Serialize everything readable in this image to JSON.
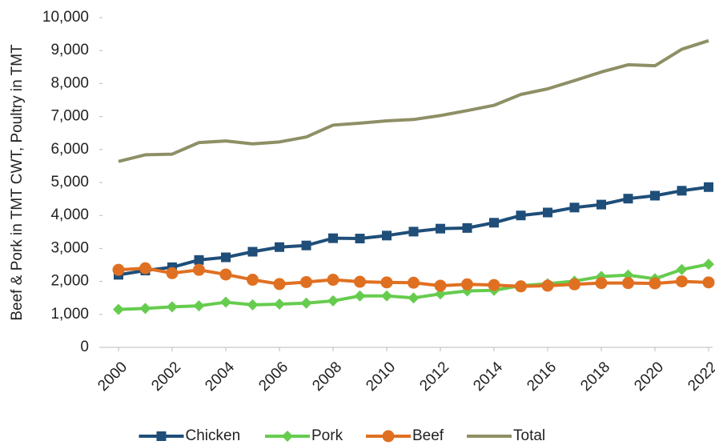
{
  "chart_data": {
    "type": "line",
    "y_label": "Beef & Pork in TMT CWT, Poultry in TMT",
    "x": [
      2000,
      2001,
      2002,
      2003,
      2004,
      2005,
      2006,
      2007,
      2008,
      2009,
      2010,
      2011,
      2012,
      2013,
      2014,
      2015,
      2016,
      2017,
      2018,
      2019,
      2020,
      2021,
      2022
    ],
    "xlim": [
      2000,
      2022
    ],
    "xticks": [
      2000,
      2002,
      2004,
      2006,
      2008,
      2010,
      2012,
      2014,
      2016,
      2018,
      2020,
      2022
    ],
    "ylim": [
      0,
      10000
    ],
    "yticks": [
      0,
      {
        "value": 1000,
        "label": "1,000"
      },
      {
        "value": 2000,
        "label": "2,000"
      },
      {
        "value": 3000,
        "label": "3,000"
      },
      {
        "value": 4000,
        "label": "4,000"
      },
      {
        "value": 5000,
        "label": "5,000"
      },
      {
        "value": 6000,
        "label": "6,000"
      },
      {
        "value": 7000,
        "label": "7,000"
      },
      {
        "value": 8000,
        "label": "8,000"
      },
      {
        "value": 9000,
        "label": "9,000"
      },
      {
        "value": 10000,
        "label": "10,000"
      }
    ],
    "grid": false,
    "legend": "bottom",
    "series": [
      {
        "name": "Chicken",
        "color": "#1f4e79",
        "marker": "square",
        "values": [
          2200,
          2330,
          2430,
          2650,
          2730,
          2900,
          3040,
          3090,
          3310,
          3300,
          3390,
          3510,
          3600,
          3620,
          3780,
          4000,
          4090,
          4240,
          4330,
          4510,
          4600,
          4750,
          4860
        ]
      },
      {
        "name": "Pork",
        "color": "#66cc4e",
        "marker": "diamond",
        "values": [
          1150,
          1180,
          1230,
          1260,
          1370,
          1290,
          1310,
          1340,
          1410,
          1560,
          1560,
          1500,
          1620,
          1710,
          1730,
          1870,
          1930,
          2010,
          2150,
          2190,
          2080,
          2360,
          2520
        ]
      },
      {
        "name": "Beef",
        "color": "#e07021",
        "marker": "circle",
        "values": [
          2350,
          2400,
          2250,
          2350,
          2210,
          2050,
          1920,
          1980,
          2050,
          1990,
          1970,
          1960,
          1870,
          1910,
          1890,
          1850,
          1870,
          1910,
          1950,
          1950,
          1940,
          2000,
          1970
        ]
      },
      {
        "name": "Total",
        "color": "#8f8f66",
        "marker": "none",
        "values": [
          5640,
          5840,
          5860,
          6210,
          6260,
          6170,
          6230,
          6380,
          6740,
          6800,
          6870,
          6910,
          7030,
          7180,
          7340,
          7670,
          7840,
          8090,
          8350,
          8570,
          8540,
          9040,
          9300
        ]
      }
    ]
  }
}
